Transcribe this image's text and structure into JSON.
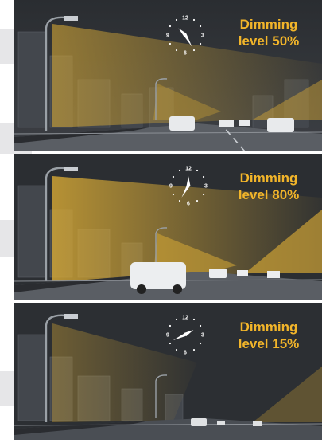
{
  "accent_color": "#f2b52a",
  "light_color": "#d7a935",
  "panels": [
    {
      "dimming_word": "Dimming",
      "level_text": "level 50%",
      "dimming_level_percent": 50,
      "clock": {
        "numerals": [
          "12",
          "3",
          "6",
          "9"
        ],
        "hour_hand_deg": 315,
        "minute_hand_deg": 150
      }
    },
    {
      "dimming_word": "Dimming",
      "level_text": "level 80%",
      "dimming_level_percent": 80,
      "clock": {
        "numerals": [
          "12",
          "3",
          "6",
          "9"
        ],
        "hour_hand_deg": 0,
        "minute_hand_deg": 210
      }
    },
    {
      "dimming_word": "Dimming",
      "level_text": "level 15%",
      "dimming_level_percent": 15,
      "clock": {
        "numerals": [
          "12",
          "3",
          "6",
          "9"
        ],
        "hour_hand_deg": 60,
        "minute_hand_deg": 245
      }
    }
  ]
}
